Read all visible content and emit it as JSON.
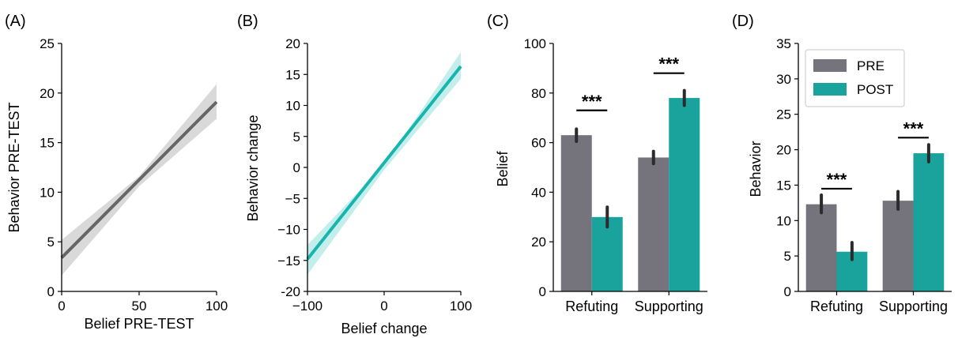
{
  "chart_data": [
    {
      "panel": "(A)",
      "type": "line",
      "xlabel": "Belief PRE-TEST",
      "ylabel": "Behavior PRE-TEST",
      "xlim": [
        0,
        100
      ],
      "ylim": [
        0,
        25
      ],
      "xticks": [
        0,
        50,
        100
      ],
      "yticks": [
        0,
        5,
        10,
        15,
        20,
        25
      ],
      "line": {
        "x": [
          0,
          100
        ],
        "y": [
          3.4,
          19.1
        ]
      },
      "ci_lower": {
        "x": [
          0,
          50,
          100
        ],
        "y": [
          1.6,
          10.6,
          17.4
        ]
      },
      "ci_upper": {
        "x": [
          0,
          50,
          100
        ],
        "y": [
          5.2,
          11.6,
          20.9
        ]
      },
      "color": "#666666",
      "band_color": "#d9d9d9"
    },
    {
      "panel": "(B)",
      "type": "line",
      "xlabel": "Belief change",
      "ylabel": "Behavior change",
      "xlim": [
        -100,
        100
      ],
      "ylim": [
        -20,
        20
      ],
      "xticks": [
        -100,
        0,
        100
      ],
      "xtick_labels": [
        "−100",
        "0",
        "100"
      ],
      "yticks": [
        -20,
        -15,
        -10,
        -5,
        0,
        5,
        10,
        15,
        20
      ],
      "ytick_labels": [
        "-20",
        "−15",
        "−10",
        "−5",
        "0",
        "5",
        "10",
        "15",
        "20"
      ],
      "line": {
        "x": [
          -100,
          100
        ],
        "y": [
          -14.8,
          16.3
        ]
      },
      "ci_lower": {
        "x": [
          -100,
          0,
          100
        ],
        "y": [
          -17.3,
          -0.4,
          14.3
        ]
      },
      "ci_upper": {
        "x": [
          -100,
          0,
          100
        ],
        "y": [
          -12.5,
          0.4,
          18.6
        ]
      },
      "color": "#18b5ae",
      "band_color": "#c4eeeb"
    },
    {
      "panel": "(C)",
      "type": "bar",
      "xlabel": "",
      "ylabel": "Belief",
      "ylim": [
        0,
        100
      ],
      "yticks": [
        0,
        20,
        40,
        60,
        80,
        100
      ],
      "categories": [
        "Refuting",
        "Supporting"
      ],
      "series": [
        {
          "values": [
            63,
            54
          ],
          "err_low": [
            60.5,
            51.5
          ],
          "err_high": [
            65.5,
            56.5
          ],
          "color": "#75747c"
        },
        {
          "values": [
            30,
            78
          ],
          "err_low": [
            26,
            75
          ],
          "err_high": [
            34,
            81
          ],
          "color": "#1aa39d"
        }
      ],
      "significance": [
        {
          "category": 0,
          "label": "***",
          "y": 73
        },
        {
          "category": 1,
          "label": "***",
          "y": 88
        }
      ]
    },
    {
      "panel": "(D)",
      "type": "bar",
      "xlabel": "",
      "ylabel": "Behavior",
      "ylim": [
        0,
        35
      ],
      "yticks": [
        0,
        5,
        10,
        15,
        20,
        25,
        30,
        35
      ],
      "categories": [
        "Refuting",
        "Supporting"
      ],
      "series": [
        {
          "name": "PRE",
          "values": [
            12.3,
            12.8
          ],
          "err_low": [
            11.1,
            11.6
          ],
          "err_high": [
            13.6,
            14.1
          ],
          "color": "#75747c"
        },
        {
          "name": "POST",
          "values": [
            5.6,
            19.5
          ],
          "err_low": [
            4.5,
            18.3
          ],
          "err_high": [
            6.9,
            20.7
          ],
          "color": "#1aa39d"
        }
      ],
      "legend": "top-left",
      "significance": [
        {
          "category": 0,
          "label": "***",
          "y": 14.5
        },
        {
          "category": 1,
          "label": "***",
          "y": 21.7
        }
      ]
    }
  ]
}
